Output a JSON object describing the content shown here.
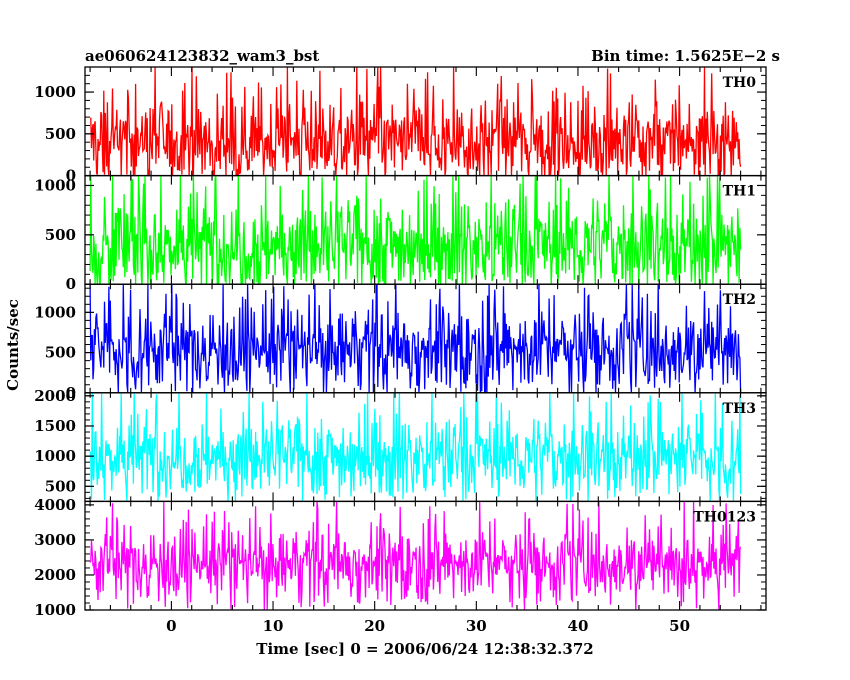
{
  "chart_data": {
    "type": "line",
    "title_left": "ae060624123832_wam3_bst",
    "title_right": "Bin time: 1.5625E−2 s",
    "xlabel": "Time [sec] 0 = 2006/06/24 12:38:32.372",
    "ylabel": "Counts/sec",
    "xlim": [
      -8.5,
      58.5
    ],
    "x_ticks": [
      0,
      10,
      20,
      30,
      40,
      50
    ],
    "x_tick_labels": [
      "0",
      "10",
      "20",
      "30",
      "40",
      "50"
    ],
    "data_range": [
      -8,
      56
    ],
    "panels": [
      {
        "name": "TH0",
        "color": "#ff0000",
        "ylim": [
          0,
          1300
        ],
        "ticks": [
          0,
          500,
          1000
        ],
        "tick_labels": [
          "0",
          "500",
          "1000"
        ],
        "base": 420,
        "spread": 260,
        "peak": 1300
      },
      {
        "name": "TH1",
        "color": "#00ff00",
        "ylim": [
          0,
          1100
        ],
        "ticks": [
          0,
          500,
          1000
        ],
        "tick_labels": [
          "0",
          "500",
          "1000"
        ],
        "base": 400,
        "spread": 250,
        "peak": 1100
      },
      {
        "name": "TH2",
        "color": "#0000ff",
        "ylim": [
          0,
          1350
        ],
        "ticks": [
          0,
          500,
          1000
        ],
        "tick_labels": [
          "0",
          "500",
          "1000"
        ],
        "base": 560,
        "spread": 270,
        "peak": 1350
      },
      {
        "name": "TH3",
        "color": "#00ffff",
        "ylim": [
          250,
          2050
        ],
        "ticks": [
          500,
          1000,
          1500,
          2000
        ],
        "tick_labels": [
          "500",
          "1000",
          "1500",
          "2000"
        ],
        "base": 1000,
        "spread": 330,
        "peak": 2050
      },
      {
        "name": "TH0123",
        "color": "#ff00ff",
        "ylim": [
          1000,
          4100
        ],
        "ticks": [
          1000,
          2000,
          3000,
          4000
        ],
        "tick_labels": [
          "1000",
          "2000",
          "3000",
          "4000"
        ],
        "base": 2350,
        "spread": 520,
        "peak": 4100
      }
    ]
  }
}
